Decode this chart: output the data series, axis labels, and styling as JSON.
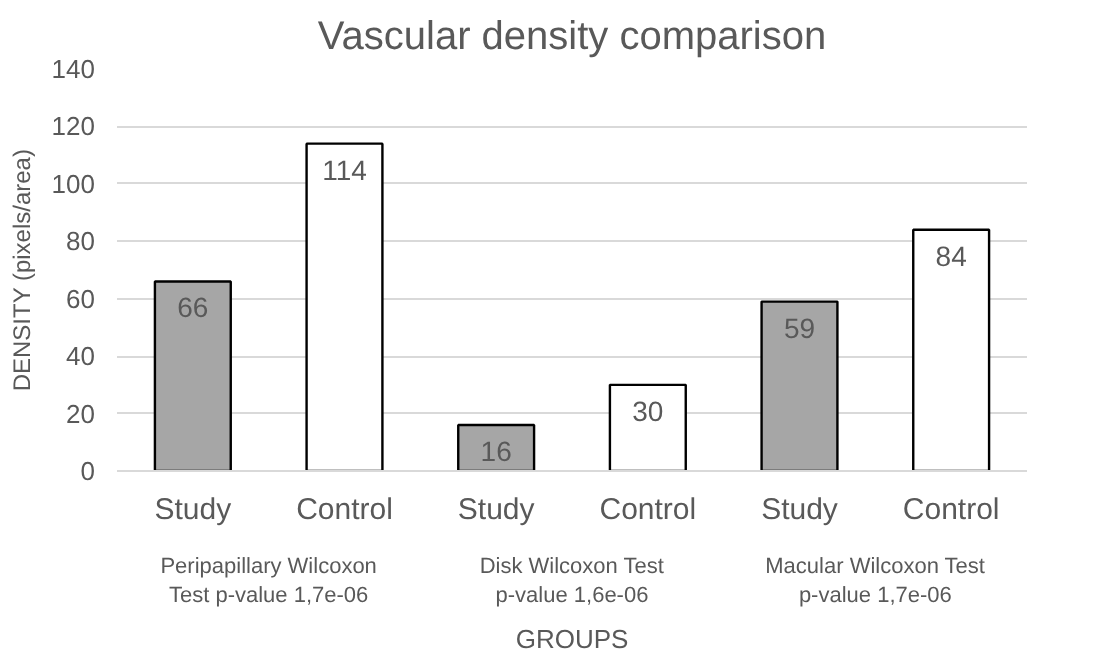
{
  "chart_data": {
    "type": "bar",
    "title": "Vascular density comparison",
    "xlabel": "GROUPS",
    "ylabel": "DENSITY (pixels/area)",
    "categories": [
      "Study",
      "Control",
      "Study",
      "Control",
      "Study",
      "Control"
    ],
    "values": [
      66,
      114,
      16,
      30,
      59,
      84
    ],
    "colors": [
      "#a6a6a6",
      "#ffffff",
      "#a6a6a6",
      "#ffffff",
      "#a6a6a6",
      "#ffffff"
    ],
    "annotations": [
      "Peripapillary Wilcoxon Test p-value 1,7e-06",
      "Disk Wilcoxon Test p-value 1,6e-06",
      "Macular Wilcoxon Test p-value 1,7e-06"
    ],
    "ylim": [
      0,
      140
    ],
    "yticks": [
      0,
      20,
      40,
      60,
      80,
      100,
      120,
      140
    ],
    "grid": "y",
    "data_labels": true
  }
}
